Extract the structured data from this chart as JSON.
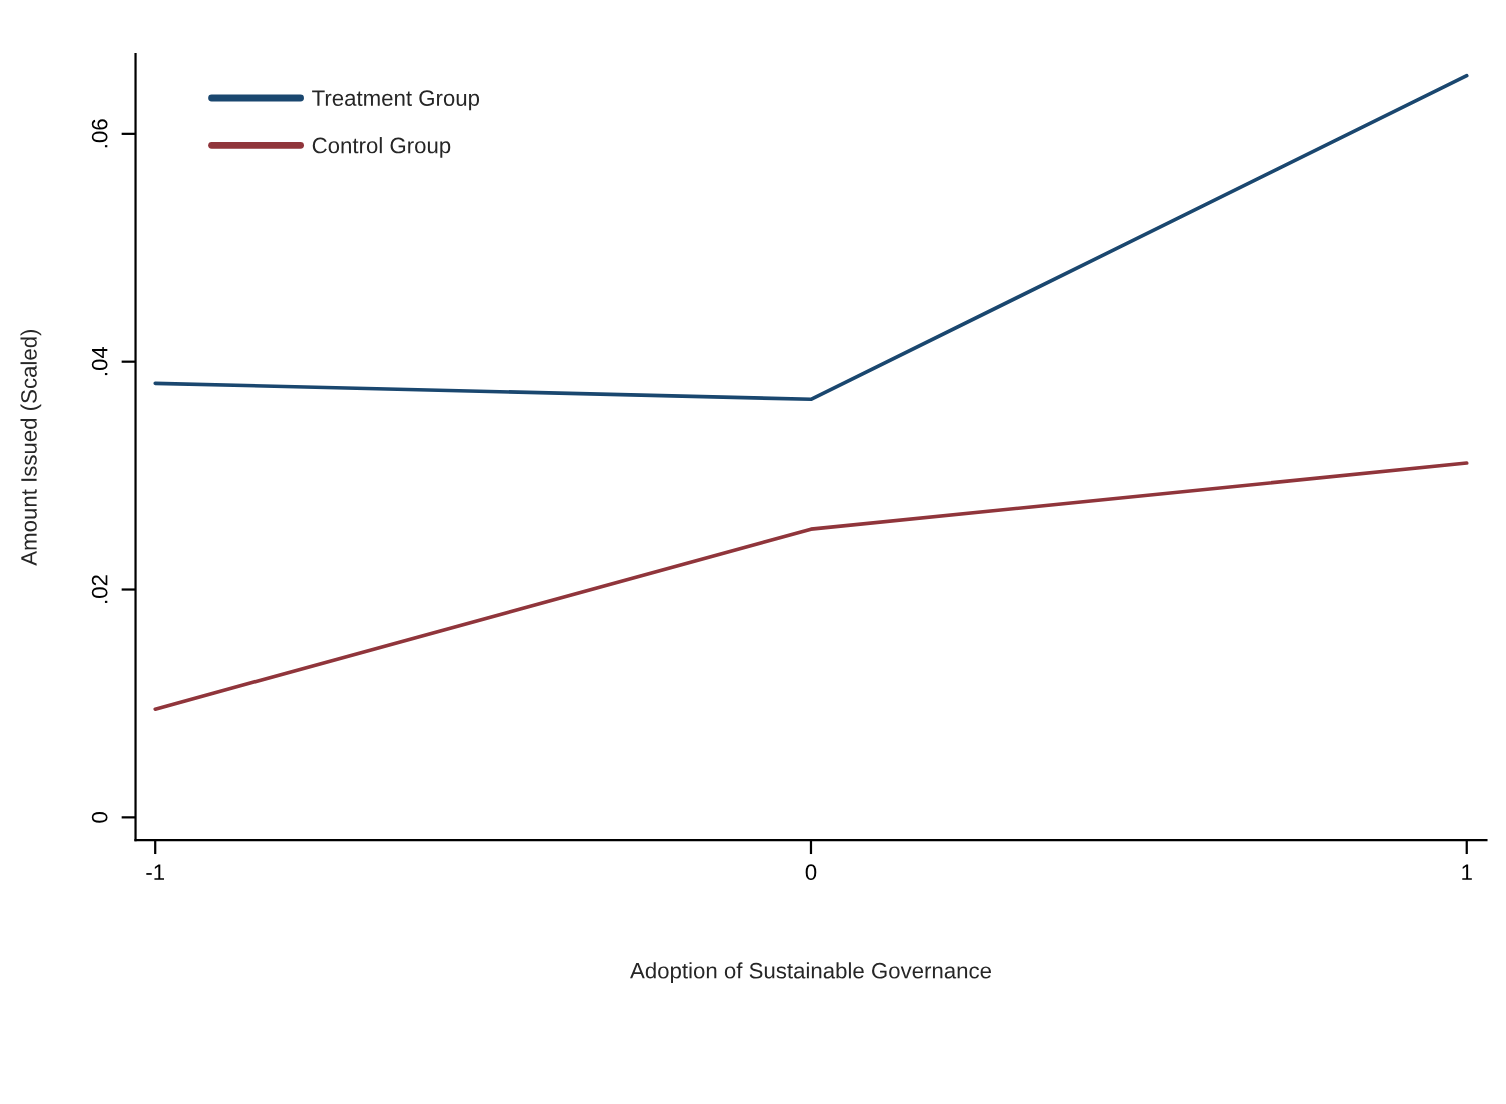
{
  "chart_data": {
    "type": "line",
    "xlabel": "Adoption of Sustainable Governance",
    "ylabel": "Amount Issued (Scaled)",
    "x": [
      -1,
      0,
      1
    ],
    "series": [
      {
        "name": "Treatment Group",
        "color": "#1a476f",
        "values": [
          0.0381,
          0.0367,
          0.0651
        ]
      },
      {
        "name": "Control Group",
        "color": "#90353b",
        "values": [
          0.0095,
          0.0253,
          0.0311
        ]
      }
    ],
    "xlim": [
      -1.03,
      1.03
    ],
    "xticks": [
      -1,
      0,
      1
    ],
    "ylim": [
      -0.002,
      0.067
    ],
    "yticks": [
      {
        "value": 0,
        "label": "0"
      },
      {
        "value": 0.02,
        "label": ".02"
      },
      {
        "value": 0.04,
        "label": ".04"
      },
      {
        "value": 0.06,
        "label": ".06"
      }
    ],
    "grid": false,
    "legend": "top left",
    "marker": "none",
    "line_style": "solid"
  }
}
